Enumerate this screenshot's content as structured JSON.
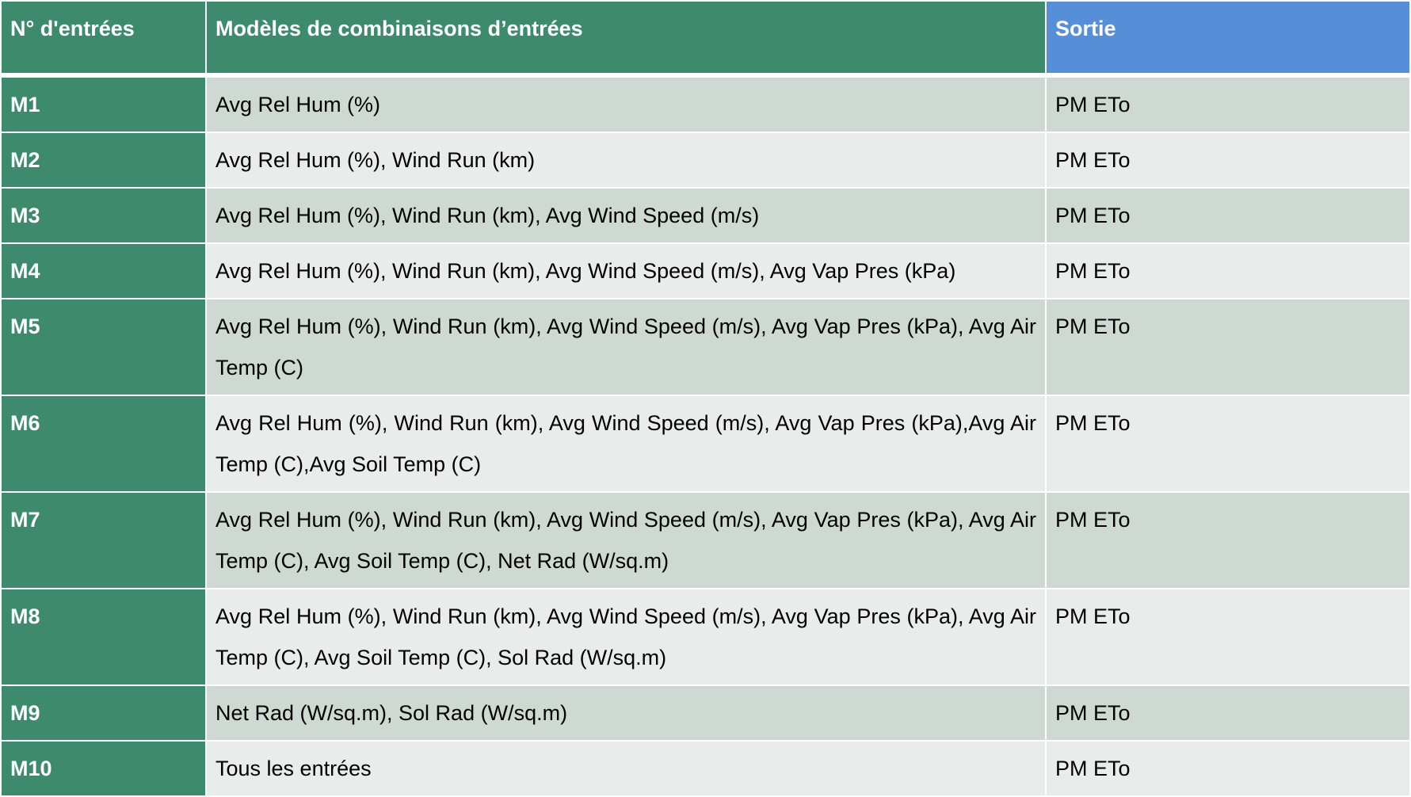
{
  "table": {
    "headers": {
      "id": "N° d'entrées",
      "models": "Modèles de combinaisons d’entrées",
      "output": "Sortie"
    },
    "rows": [
      {
        "id": "M1",
        "inputs": "Avg Rel Hum (%)",
        "output": "PM ETo"
      },
      {
        "id": "M2",
        "inputs": "Avg Rel Hum (%), Wind Run (km)",
        "output": "PM ETo"
      },
      {
        "id": "M3",
        "inputs": "Avg Rel Hum (%), Wind Run (km), Avg Wind Speed (m/s)",
        "output": "PM ETo"
      },
      {
        "id": "M4",
        "inputs": "Avg Rel Hum (%), Wind Run (km), Avg Wind Speed (m/s), Avg Vap Pres (kPa)",
        "output": "PM ETo"
      },
      {
        "id": "M5",
        "inputs": "Avg Rel Hum (%), Wind Run (km), Avg Wind Speed (m/s), Avg Vap Pres (kPa), Avg Air Temp (C)",
        "output": "PM ETo"
      },
      {
        "id": "M6",
        "inputs": "Avg Rel Hum (%), Wind Run (km), Avg Wind Speed (m/s), Avg Vap Pres (kPa),Avg Air Temp (C),Avg Soil Temp (C)",
        "output": "PM ETo"
      },
      {
        "id": "M7",
        "inputs": "Avg Rel Hum (%), Wind Run (km), Avg Wind Speed (m/s), Avg Vap Pres (kPa), Avg Air Temp (C), Avg Soil Temp (C), Net Rad (W/sq.m)",
        "output": "PM ETo"
      },
      {
        "id": "M8",
        "inputs": "Avg Rel Hum (%), Wind Run (km), Avg Wind Speed (m/s), Avg Vap Pres (kPa), Avg Air Temp (C), Avg Soil Temp (C), Sol Rad (W/sq.m)",
        "output": "PM ETo"
      },
      {
        "id": "M9",
        "inputs": "Net Rad (W/sq.m), Sol Rad (W/sq.m)",
        "output": "PM ETo"
      },
      {
        "id": "M10",
        "inputs": "Tous les entrées",
        "output": "PM ETo"
      }
    ]
  },
  "colors": {
    "header_green": "#3d8a6c",
    "header_blue": "#568fd8",
    "row_dark": "#cfd9d3",
    "row_light": "#e8ecea"
  }
}
